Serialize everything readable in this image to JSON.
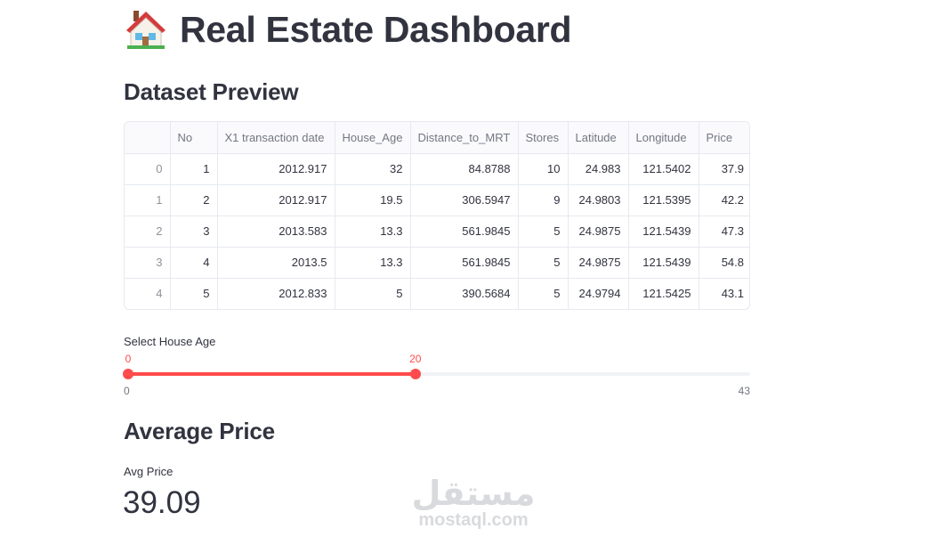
{
  "header": {
    "icon": "house-icon",
    "title": "Real Estate Dashboard"
  },
  "preview": {
    "heading": "Dataset Preview",
    "columns": [
      "",
      "No",
      "X1 transaction date",
      "House_Age",
      "Distance_to_MRT",
      "Stores",
      "Latitude",
      "Longitude",
      "Price"
    ],
    "rows": [
      [
        "0",
        "1",
        "2012.917",
        "32",
        "84.8788",
        "10",
        "24.983",
        "121.5402",
        "37.9"
      ],
      [
        "1",
        "2",
        "2012.917",
        "19.5",
        "306.5947",
        "9",
        "24.9803",
        "121.5395",
        "42.2"
      ],
      [
        "2",
        "3",
        "2013.583",
        "13.3",
        "561.9845",
        "5",
        "24.9875",
        "121.5439",
        "47.3"
      ],
      [
        "3",
        "4",
        "2013.5",
        "13.3",
        "561.9845",
        "5",
        "24.9875",
        "121.5439",
        "54.8"
      ],
      [
        "4",
        "5",
        "2012.833",
        "5",
        "390.5684",
        "5",
        "24.9794",
        "121.5425",
        "43.1"
      ]
    ]
  },
  "slider": {
    "label": "Select House Age",
    "min": "0",
    "max": "43",
    "low": "0",
    "high": "20",
    "range": [
      0,
      43
    ],
    "value": [
      0,
      20
    ],
    "accent": "#ff4b4b"
  },
  "average": {
    "heading": "Average Price",
    "metric_label": "Avg Price",
    "metric_value": "39.09"
  },
  "watermark": {
    "arabic": "مستقل",
    "latin": "mostaql.com"
  }
}
